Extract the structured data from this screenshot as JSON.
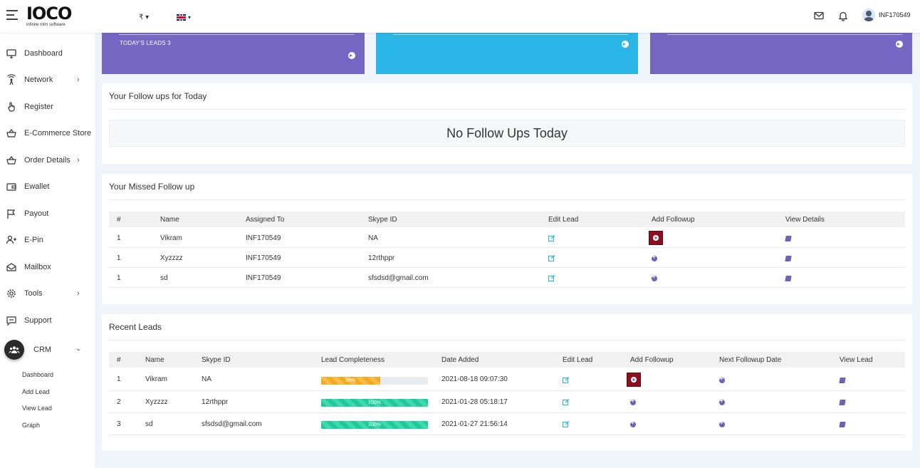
{
  "header": {
    "logo_text": "IOCO",
    "logo_subtitle": "infinite mlm software",
    "currency": "₹",
    "language": "EN",
    "username": "INF170549"
  },
  "sidebar": {
    "items": [
      {
        "label": "Dashboard",
        "icon": "monitor-icon"
      },
      {
        "label": "Network",
        "icon": "network-icon",
        "has_children": true
      },
      {
        "label": "Register",
        "icon": "hand-pointer-icon"
      },
      {
        "label": "E-Commerce Store",
        "icon": "basket-icon"
      },
      {
        "label": "Order Details",
        "icon": "basket-icon",
        "has_children": true
      },
      {
        "label": "Ewallet",
        "icon": "wallet-icon"
      },
      {
        "label": "Payout",
        "icon": "flag-icon"
      },
      {
        "label": "E-Pin",
        "icon": "user-plus-icon"
      },
      {
        "label": "Mailbox",
        "icon": "mail-open-icon"
      },
      {
        "label": "Tools",
        "icon": "gear-icon",
        "has_children": true
      },
      {
        "label": "Support",
        "icon": "chat-icon"
      }
    ],
    "crm": {
      "label": "CRM",
      "icon": "users-icon",
      "submenu": [
        "Dashboard",
        "Add Lead",
        "View Lead",
        "Graph"
      ]
    }
  },
  "stat_cards": [
    {
      "subtitle": "TODAY'S LEADS 3",
      "color": "#7466c2"
    },
    {
      "subtitle": "",
      "color": "#29b6e6"
    },
    {
      "subtitle": "",
      "color": "#7466c2"
    }
  ],
  "followups_today": {
    "title": "Your Follow ups for Today",
    "empty_message": "No Follow Ups Today"
  },
  "missed_followups": {
    "title": "Your Missed Follow up",
    "columns": [
      "#",
      "Name",
      "Assigned To",
      "Skype ID",
      "Edit Lead",
      "Add Followup",
      "View Details"
    ],
    "rows": [
      {
        "num": "1",
        "name": "Vikram",
        "assigned": "INF170549",
        "skype": "NA"
      },
      {
        "num": "1",
        "name": "Xyzzzz",
        "assigned": "INF170549",
        "skype": "12rthppr"
      },
      {
        "num": "1",
        "name": "sd",
        "assigned": "INF170549",
        "skype": "sfsdsd@gmail.com"
      }
    ]
  },
  "recent_leads": {
    "title": "Recent Leads",
    "columns": [
      "#",
      "Name",
      "Skype ID",
      "Lead Completeness",
      "Date Added",
      "Edit Lead",
      "Add Followup",
      "Next Followup Date",
      "View Lead"
    ],
    "rows": [
      {
        "num": "1",
        "name": "Vikram",
        "skype": "NA",
        "completeness": 55,
        "completeness_label": "55%",
        "date": "2021-08-18 09:07:30"
      },
      {
        "num": "2",
        "name": "Xyzzzz",
        "skype": "12rthppr",
        "completeness": 100,
        "completeness_label": "100%",
        "date": "2021-01-28 05:18:17"
      },
      {
        "num": "3",
        "name": "sd",
        "skype": "sfsdsd@gmail.com",
        "completeness": 100,
        "completeness_label": "100%",
        "date": "2021-01-27 21:56:14"
      }
    ]
  },
  "colors": {
    "accent_purple": "#7466c2",
    "accent_blue": "#29b6e6",
    "highlight_red": "#8b0f1f",
    "progress_warn": "#f4a91e",
    "progress_ok": "#1ec99a"
  }
}
